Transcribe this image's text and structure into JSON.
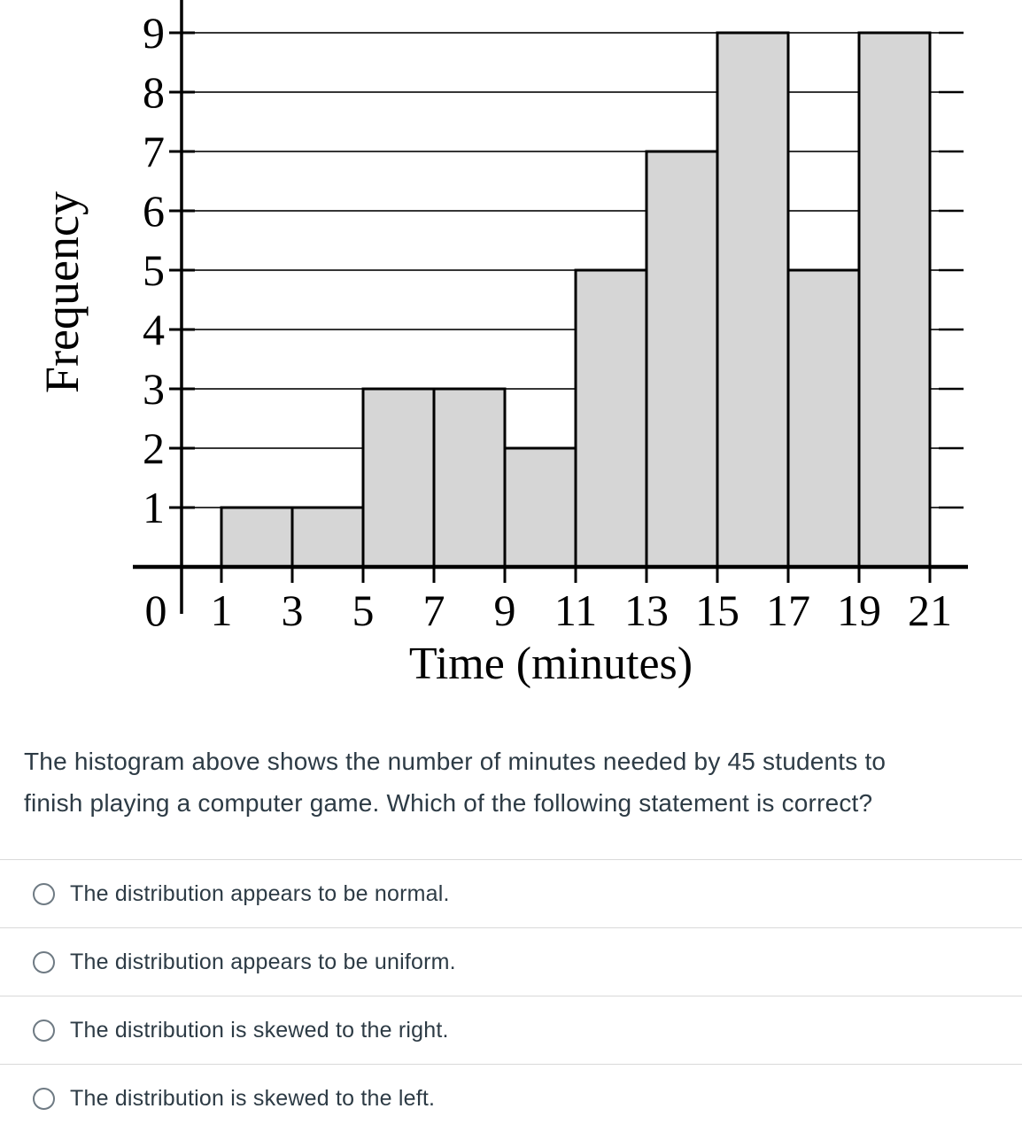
{
  "chart_data": {
    "type": "bar",
    "subtype": "histogram",
    "title": "",
    "xlabel": "Time (minutes)",
    "ylabel": "Frequency",
    "bin_edges": [
      1,
      3,
      5,
      7,
      9,
      11,
      13,
      15,
      17,
      19,
      21
    ],
    "frequencies": [
      1,
      1,
      3,
      3,
      2,
      5,
      7,
      9,
      5,
      9
    ],
    "x_ticks": [
      1,
      3,
      5,
      7,
      9,
      11,
      13,
      15,
      17,
      19,
      21
    ],
    "y_ticks": [
      1,
      2,
      3,
      4,
      5,
      6,
      7,
      8,
      9
    ],
    "origin_label": "0",
    "xlim": [
      0,
      22
    ],
    "ylim": [
      0,
      9.6
    ],
    "grid": true,
    "bar_fill": "#d6d6d6",
    "bar_stroke": "#000000",
    "total_count": 45
  },
  "question": {
    "line1": "The histogram above shows the number of minutes needed by 45 students to",
    "line2": "finish playing a computer game. Which of the following statement is correct?"
  },
  "options": [
    {
      "label": "The distribution appears to be normal.",
      "selected": false
    },
    {
      "label": "The distribution appears to be uniform.",
      "selected": false
    },
    {
      "label": "The distribution is skewed to the right.",
      "selected": false
    },
    {
      "label": "The distribution is skewed to the left.",
      "selected": false
    }
  ],
  "colors": {
    "text": "#2d3b45",
    "divider": "#d9d9d9",
    "radio_border": "#6e7a83",
    "grid_line": "#1a1a1a"
  }
}
